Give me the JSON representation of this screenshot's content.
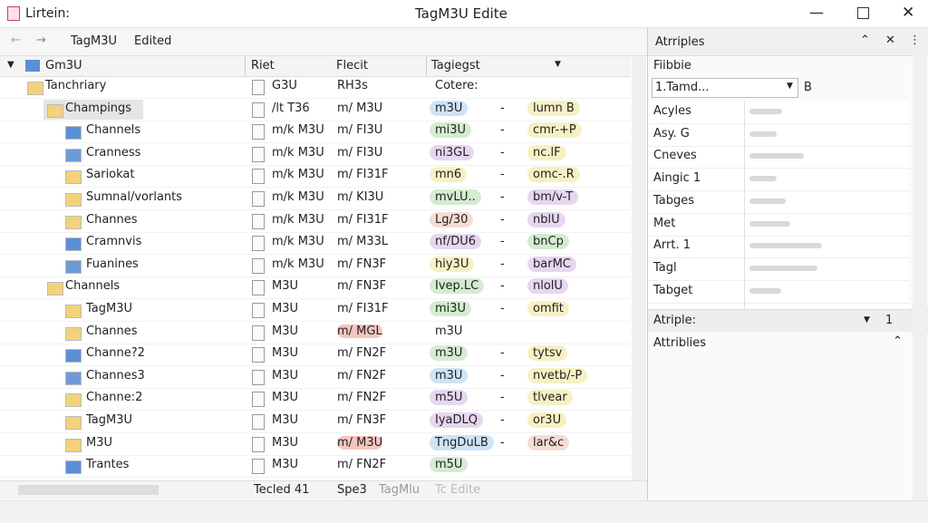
{
  "window": {
    "app_label": "Lirtein:",
    "title": "TagM3U Edite"
  },
  "toolbar": {
    "path": "TagM3U",
    "status": "Edited"
  },
  "tree": {
    "root": "Gm3U",
    "columns": [
      "Riet",
      "Flecit",
      "Tagiegst"
    ],
    "rows": [
      {
        "label": "Tanchriary",
        "level": 0,
        "c1": "G3U",
        "c2": "RH3s",
        "tag": "Cotere:",
        "dash": "",
        "tag2": ""
      },
      {
        "label": "Champings",
        "level": 1,
        "c1": "/lt T36",
        "c2": "m/ M3U",
        "tag": "m3U",
        "tag_color": "#cfe3f7",
        "dash": "-",
        "tag2": "lumn B",
        "tag2_color": "#f7f0c4"
      },
      {
        "label": "Channels",
        "level": 2,
        "c1": "m/k M3U",
        "c2": "m/ FI3U",
        "tag": "mi3U",
        "tag_color": "#d4ecd0",
        "dash": "-",
        "tag2": "cmr-+P",
        "tag2_color": "#f7f0c4"
      },
      {
        "label": "Cranness",
        "level": 2,
        "c1": "m/k M3U",
        "c2": "m/ FI3U",
        "tag": "ni3GL",
        "tag_color": "#e7d6f0",
        "dash": "-",
        "tag2": "nc.lF",
        "tag2_color": "#f7f0c4"
      },
      {
        "label": "Sariokat",
        "level": 2,
        "c1": "m/k M3U",
        "c2": "m/ FI31F",
        "tag": "mn6",
        "tag_color": "#f7f0c4",
        "dash": "-",
        "tag2": "omc-.R",
        "tag2_color": "#f7f0c4"
      },
      {
        "label": "Sumnal/vorlants",
        "level": 2,
        "c1": "m/k M3U",
        "c2": "m/ KI3U",
        "tag": "mvLU..",
        "tag_color": "#d4ecd0",
        "dash": "-",
        "tag2": "bm/v-T",
        "tag2_color": "#e7d6f0"
      },
      {
        "label": "Channes",
        "level": 2,
        "c1": "m/k M3U",
        "c2": "m/ FI31F",
        "tag": "Lg/30",
        "tag_color": "#f7dcd6",
        "dash": "-",
        "tag2": "nblU",
        "tag2_color": "#e7d6f0"
      },
      {
        "label": "Cramnvis",
        "level": 2,
        "c1": "m/k M3U",
        "c2": "m/ M33L",
        "tag": "nf/DU6",
        "tag_color": "#e7d6f0",
        "dash": "-",
        "tag2": "bnCp",
        "tag2_color": "#d4ecd0"
      },
      {
        "label": "Fuanines",
        "level": 2,
        "c1": "m/k M3U",
        "c2": "m/ FN3F",
        "tag": "hiy3U",
        "tag_color": "#f7f0c4",
        "dash": "-",
        "tag2": "barMC",
        "tag2_color": "#e7d6f0"
      },
      {
        "label": "Channels",
        "level": 1,
        "c1": "M3U",
        "c2": "m/ FN3F",
        "tag": "Ivep.LC",
        "tag_color": "#d4ecd0",
        "dash": "-",
        "tag2": "nlolU",
        "tag2_color": "#e7d6f0"
      },
      {
        "label": "TagM3U",
        "level": 2,
        "c1": "M3U",
        "c2": "m/ FI31F",
        "tag": "mi3U",
        "tag_color": "#d4ecd0",
        "dash": "-",
        "tag2": "omfit",
        "tag2_color": "#f7f0c4"
      },
      {
        "label": "Channes",
        "level": 2,
        "c1": "M3U",
        "c2": "m/ MGL",
        "c2_color": "#f5c6be",
        "tag": "m3U",
        "dash": "",
        "tag2": ""
      },
      {
        "label": "Channe?2",
        "level": 2,
        "c1": "M3U",
        "c2": "m/ FN2F",
        "tag": "m3U",
        "tag_color": "#d4ecd0",
        "dash": "-",
        "tag2": "tytsv",
        "tag2_color": "#f7f0c4"
      },
      {
        "label": "Channes3",
        "level": 2,
        "c1": "M3U",
        "c2": "m/ FN2F",
        "tag": "m3U",
        "tag_color": "#cfe3f7",
        "dash": "-",
        "tag2": "nvetb/-P",
        "tag2_color": "#f7f0c4"
      },
      {
        "label": "Channe:2",
        "level": 2,
        "c1": "M3U",
        "c2": "m/ FN2F",
        "tag": "m5U",
        "tag_color": "#e7d6f0",
        "dash": "-",
        "tag2": "tlvear",
        "tag2_color": "#f7f0c4"
      },
      {
        "label": "TagM3U",
        "level": 2,
        "c1": "M3U",
        "c2": "m/ FN3F",
        "tag": "IyaDLQ",
        "tag_color": "#e7d6f0",
        "dash": "-",
        "tag2": "or3U",
        "tag2_color": "#f7f0c4"
      },
      {
        "label": "M3U",
        "level": 2,
        "c1": "M3U",
        "c2": "m/ M3U",
        "c2_color": "#f5c6be",
        "tag": "TngDuLB",
        "tag_color": "#cfe3f7",
        "dash": "-",
        "tag2": "lar&c",
        "tag2_color": "#f7dcd6"
      },
      {
        "label": "Trantes",
        "level": 2,
        "c1": "M3U",
        "c2": "m/ FN2F",
        "tag": "m5U",
        "tag_color": "#d4ecd0",
        "dash": "",
        "tag2": ""
      }
    ]
  },
  "status": [
    "Tecled 41",
    "Spe3",
    "TagMlu",
    "Tc Edite"
  ],
  "panel": {
    "title": "Atrriples",
    "subtitle": "Fiibbie",
    "dropdown": "1.Tamd...",
    "dropdown_extra": "B",
    "props": [
      "Acyles",
      "Asy. G",
      "Cneves",
      "Aingic 1",
      "Tabges",
      "Met",
      "Arrt. 1",
      "Tagl",
      "Tabget"
    ],
    "section": "Atriple:",
    "section_value": "1",
    "footer": "Attriblies"
  }
}
